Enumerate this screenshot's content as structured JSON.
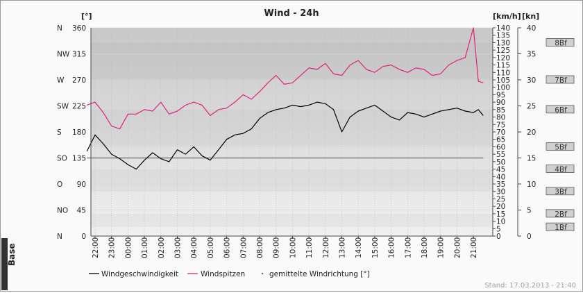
{
  "title": "Wind - 24h",
  "units": {
    "left": "[°]",
    "kmh": "[km/h]",
    "kn": "[kn]"
  },
  "footer": "Stand: 17.03.2013 - 21:40",
  "logo": {
    "text": "Base"
  },
  "colors": {
    "speed": "#000000",
    "gust": "#e0207a",
    "direction_line": "#808080"
  },
  "chart_data": {
    "type": "line",
    "title": "Wind - 24h",
    "x_ticks": [
      "22:00",
      "23:00",
      "00:00",
      "01:00",
      "02:00",
      "03:00",
      "04:00",
      "05:00",
      "06:00",
      "07:00",
      "08:00",
      "09:00",
      "10:00",
      "11:00",
      "12:00",
      "13:00",
      "14:00",
      "15:00",
      "16:00",
      "17:00",
      "18:00",
      "19:00",
      "20:00",
      "21:00"
    ],
    "direction_axis": {
      "unit": "[°]",
      "range": [
        0,
        360
      ],
      "ticks": [
        0,
        45,
        90,
        135,
        180,
        225,
        270,
        315,
        360
      ],
      "compass_labels": [
        "N",
        "NO",
        "O",
        "SO",
        "S",
        "SW",
        "W",
        "NW",
        "N"
      ]
    },
    "kmh_axis": {
      "unit": "[km/h]",
      "range": [
        0,
        140
      ],
      "ticks": [
        0,
        5,
        10,
        15,
        20,
        25,
        30,
        35,
        40,
        45,
        50,
        55,
        60,
        65,
        70,
        75,
        80,
        85,
        90,
        95,
        100,
        105,
        110,
        115,
        120,
        125,
        130,
        135,
        140
      ]
    },
    "kn_axis": {
      "unit": "[kn]",
      "range": [
        0,
        40
      ],
      "ticks": [
        0,
        5,
        10,
        15,
        20,
        25,
        30,
        35,
        40
      ]
    },
    "beaufort": [
      {
        "label": "1Bf",
        "kmh": 6
      },
      {
        "label": "2Bf",
        "kmh": 15
      },
      {
        "label": "3Bf",
        "kmh": 30
      },
      {
        "label": "4Bf",
        "kmh": 45
      },
      {
        "label": "5Bf",
        "kmh": 60
      },
      {
        "label": "6Bf",
        "kmh": 85
      },
      {
        "label": "7Bf",
        "kmh": 105
      },
      {
        "label": "8Bf",
        "kmh": 130
      }
    ],
    "series": [
      {
        "name": "Windgeschwindigkeit",
        "unit": "km/h",
        "x_hours": [
          -0.5,
          0,
          0.5,
          1,
          1.5,
          2,
          2.5,
          3,
          3.5,
          4,
          4.5,
          5,
          5.5,
          6,
          6.5,
          7,
          7.5,
          8,
          8.5,
          9,
          9.5,
          10,
          10.5,
          11,
          11.5,
          12,
          12.5,
          13,
          13.5,
          14,
          14.5,
          15,
          15.5,
          16,
          16.5,
          17,
          17.5,
          18,
          18.5,
          19,
          19.5,
          20,
          20.5,
          21,
          21.5,
          22,
          22.5,
          23,
          23.3,
          23.6
        ],
        "values": [
          57,
          68,
          62,
          55,
          52,
          48,
          45,
          51,
          56,
          52,
          50,
          58,
          55,
          60,
          54,
          51,
          58,
          65,
          68,
          69,
          72,
          79,
          83,
          85,
          86,
          88,
          87,
          88,
          90,
          89,
          85,
          70,
          80,
          84,
          86,
          88,
          84,
          80,
          78,
          83,
          82,
          80,
          82,
          84,
          85,
          86,
          84,
          83,
          85,
          81
        ]
      },
      {
        "name": "Windspitzen",
        "unit": "km/h",
        "x_hours": [
          -0.5,
          0,
          0.5,
          1,
          1.5,
          2,
          2.5,
          3,
          3.5,
          4,
          4.5,
          5,
          5.5,
          6,
          6.5,
          7,
          7.5,
          8,
          8.5,
          9,
          9.5,
          10,
          10.5,
          11,
          11.5,
          12,
          12.5,
          13,
          13.5,
          14,
          14.5,
          15,
          15.5,
          16,
          16.5,
          17,
          17.5,
          18,
          18.5,
          19,
          19.5,
          20,
          20.5,
          21,
          21.5,
          22,
          22.5,
          23,
          23.3,
          23.6
        ],
        "values": [
          88,
          90,
          83,
          74,
          72,
          82,
          82,
          85,
          84,
          90,
          82,
          84,
          88,
          90,
          88,
          81,
          85,
          86,
          90,
          95,
          92,
          97,
          103,
          108,
          102,
          103,
          108,
          113,
          112,
          116,
          109,
          108,
          115,
          118,
          112,
          110,
          114,
          115,
          112,
          110,
          113,
          112,
          108,
          109,
          115,
          118,
          120,
          140,
          104,
          103
        ]
      },
      {
        "name": "gemittelte Windrichtung [°]",
        "unit": "°",
        "x_hours": [
          -0.5,
          23.6
        ],
        "values": [
          135,
          135
        ]
      }
    ],
    "legend_placement": "bottom"
  }
}
